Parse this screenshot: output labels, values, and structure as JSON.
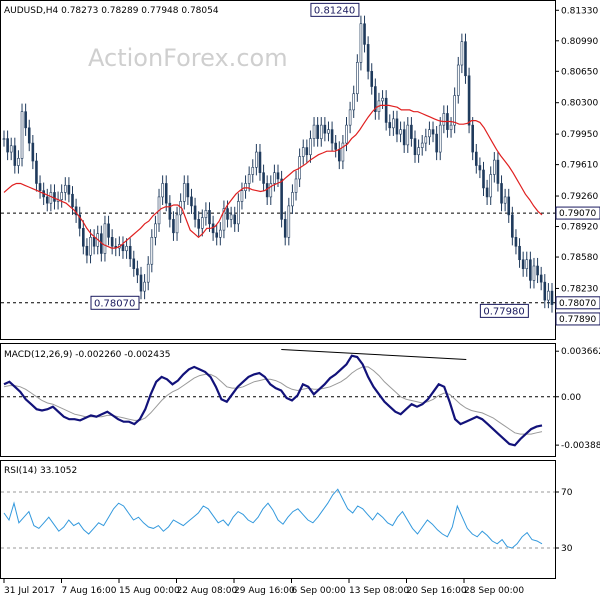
{
  "chart_data": [
    {
      "type": "candlestick",
      "title": "AUDUSD,H4  0.78273 0.78289 0.77948 0.78054",
      "watermark": "ActionForex.com",
      "ylim": [
        0.777,
        0.814
      ],
      "yticks": [
        "0.81330",
        "0.80990",
        "0.80650",
        "0.80300",
        "0.79950",
        "0.79610",
        "0.79260",
        "0.78920",
        "0.78580",
        "0.78230"
      ],
      "price_badges": [
        {
          "value": 0.7907,
          "label": "0.79070"
        },
        {
          "value": 0.7807,
          "label": "0.78070"
        },
        {
          "value": 0.7789,
          "label": "0.77890"
        }
      ],
      "horizontal_lines": [
        0.7907,
        0.7807
      ],
      "annotations": [
        {
          "label": "0.81240",
          "value": 0.8124,
          "x_index": 99
        },
        {
          "label": "0.78070",
          "value": 0.7807,
          "x_index": 38
        },
        {
          "label": "0.77980",
          "value": 0.7798,
          "x_index": 146
        }
      ],
      "price_series": [
        0.799,
        0.7975,
        0.7982,
        0.796,
        0.7968,
        0.802,
        0.8002,
        0.7985,
        0.7965,
        0.794,
        0.7932,
        0.7925,
        0.7918,
        0.793,
        0.792,
        0.7922,
        0.793,
        0.7938,
        0.7928,
        0.7914,
        0.7905,
        0.789,
        0.787,
        0.786,
        0.788,
        0.787,
        0.7884,
        0.7862,
        0.7895,
        0.788,
        0.787,
        0.7868,
        0.7872,
        0.7865,
        0.787,
        0.7856,
        0.7845,
        0.7838,
        0.782,
        0.783,
        0.785,
        0.788,
        0.7895,
        0.7925,
        0.794,
        0.7918,
        0.79,
        0.7885,
        0.7905,
        0.792,
        0.794,
        0.7925,
        0.7915,
        0.79,
        0.789,
        0.7902,
        0.791,
        0.7895,
        0.7885,
        0.788,
        0.7888,
        0.7912,
        0.79,
        0.7905,
        0.7895,
        0.792,
        0.7932,
        0.794,
        0.795,
        0.7958,
        0.7975,
        0.7952,
        0.794,
        0.7925,
        0.794,
        0.7952,
        0.7945,
        0.79,
        0.788,
        0.7915,
        0.793,
        0.7945,
        0.797,
        0.798,
        0.7972,
        0.799,
        0.8005,
        0.799,
        0.8005,
        0.7996,
        0.8,
        0.7985,
        0.7978,
        0.7965,
        0.7985,
        0.8005,
        0.8022,
        0.804,
        0.8075,
        0.8118,
        0.8095,
        0.8065,
        0.8048,
        0.802,
        0.8032,
        0.8035,
        0.8008,
        0.8002,
        0.8012,
        0.7995,
        0.8,
        0.7983,
        0.8005,
        0.799,
        0.7972,
        0.798,
        0.7985,
        0.7992,
        0.8,
        0.7995,
        0.7975,
        0.8005,
        0.8018,
        0.8,
        0.8005,
        0.8038,
        0.8072,
        0.8098,
        0.806,
        0.8005,
        0.7975,
        0.796,
        0.7955,
        0.7935,
        0.7925,
        0.795,
        0.7966,
        0.794,
        0.7918,
        0.7925,
        0.7905,
        0.788,
        0.787,
        0.7855,
        0.7845,
        0.7855,
        0.7832,
        0.7848,
        0.7838,
        0.783,
        0.781,
        0.782,
        0.7805
      ],
      "ma_series": [
        0.793,
        0.7934,
        0.7938,
        0.794,
        0.794,
        0.7938,
        0.7936,
        0.7934,
        0.7932,
        0.793,
        0.7928,
        0.7926,
        0.7924,
        0.7922,
        0.792,
        0.7918,
        0.7914,
        0.791,
        0.7904,
        0.7898,
        0.789,
        0.7884,
        0.788,
        0.7876,
        0.7872,
        0.787,
        0.7868,
        0.7868,
        0.787,
        0.7874,
        0.7878,
        0.7882,
        0.7886,
        0.789,
        0.7895,
        0.7898,
        0.7904,
        0.7908,
        0.7912,
        0.7914,
        0.7914,
        0.7916,
        0.7916,
        0.7912,
        0.79,
        0.7888,
        0.7884,
        0.788,
        0.7884,
        0.789,
        0.789,
        0.7892,
        0.7898,
        0.7908,
        0.7916,
        0.7922,
        0.7928,
        0.7932,
        0.7935,
        0.7935,
        0.7933,
        0.7932,
        0.7931,
        0.7932,
        0.7935,
        0.7938,
        0.794,
        0.7942,
        0.7946,
        0.795,
        0.7954,
        0.7956,
        0.7959,
        0.7962,
        0.7966,
        0.7969,
        0.7972,
        0.7974,
        0.7976,
        0.7976,
        0.7976,
        0.7978,
        0.7981,
        0.7984,
        0.799,
        0.7994,
        0.8,
        0.8007,
        0.8014,
        0.802,
        0.8025,
        0.8027,
        0.8027,
        0.8027,
        0.8026,
        0.8025,
        0.8022,
        0.8022,
        0.8022,
        0.802,
        0.802,
        0.8018,
        0.8016,
        0.8014,
        0.8012,
        0.801,
        0.8009,
        0.8009,
        0.8009,
        0.8008,
        0.8006,
        0.8006,
        0.8007,
        0.801,
        0.801,
        0.8008,
        0.8002,
        0.7994,
        0.7986,
        0.7978,
        0.7971,
        0.7965,
        0.7959,
        0.7952,
        0.7944,
        0.7936,
        0.7928,
        0.7922,
        0.7915,
        0.7909,
        0.7905
      ]
    },
    {
      "type": "line",
      "title": "MACD(12,26,9) -0.002260 -0.002435",
      "ylim": [
        -0.0046,
        0.004
      ],
      "yticks": [
        "0.003662",
        "0.00",
        "-0.003887"
      ],
      "zero_line": 0,
      "macd": [
        0.001,
        0.0012,
        0.0008,
        0.0004,
        -0.0002,
        -0.0006,
        -0.001,
        -0.0011,
        -0.001,
        -0.0008,
        -0.0012,
        -0.0016,
        -0.0018,
        -0.0018,
        -0.0019,
        -0.0017,
        -0.0015,
        -0.0016,
        -0.0014,
        -0.0012,
        -0.0015,
        -0.0018,
        -0.002,
        -0.002,
        -0.0022,
        -0.0018,
        -0.001,
        0.0002,
        0.0012,
        0.0016,
        0.0014,
        0.001,
        0.0013,
        0.0018,
        0.0022,
        0.0024,
        0.0022,
        0.002,
        0.0016,
        0.0008,
        -0.0002,
        -0.0004,
        0.0002,
        0.0008,
        0.0012,
        0.0016,
        0.0018,
        0.0019,
        0.0016,
        0.001,
        0.0007,
        0.0005,
        -0.0001,
        -0.0003,
        0.0001,
        0.001,
        0.0008,
        0.0002,
        0.0006,
        0.001,
        0.0015,
        0.0018,
        0.0022,
        0.0026,
        0.0033,
        0.0032,
        0.0026,
        0.0016,
        0.0008,
        0.0002,
        -0.0004,
        -0.0008,
        -0.0012,
        -0.0014,
        -0.001,
        -0.0006,
        -0.0008,
        -0.0006,
        -0.0002,
        0.0004,
        0.001,
        0.0008,
        -0.0004,
        -0.0018,
        -0.0022,
        -0.002,
        -0.0018,
        -0.0016,
        -0.0018,
        -0.0022,
        -0.0026,
        -0.003,
        -0.0034,
        -0.0038,
        -0.0039,
        -0.0034,
        -0.003,
        -0.0026,
        -0.0024,
        -0.0023
      ],
      "signal": [
        0.0008,
        0.0009,
        0.0009,
        0.0008,
        0.0006,
        0.0003,
        0.0,
        -0.0003,
        -0.0005,
        -0.0006,
        -0.0008,
        -0.001,
        -0.0012,
        -0.0014,
        -0.0015,
        -0.0016,
        -0.0016,
        -0.0016,
        -0.0016,
        -0.0015,
        -0.0015,
        -0.0016,
        -0.0017,
        -0.0018,
        -0.0019,
        -0.0019,
        -0.0017,
        -0.0013,
        -0.0008,
        -0.0003,
        0.0001,
        0.0004,
        0.0006,
        0.0009,
        0.0012,
        0.0015,
        0.0017,
        0.0018,
        0.0018,
        0.0016,
        0.0012,
        0.0008,
        0.0007,
        0.0007,
        0.0008,
        0.001,
        0.0012,
        0.0013,
        0.0014,
        0.0014,
        0.0013,
        0.0011,
        0.0008,
        0.0006,
        0.0005,
        0.0006,
        0.0007,
        0.0006,
        0.0006,
        0.0007,
        0.0008,
        0.001,
        0.0012,
        0.0015,
        0.0019,
        0.0022,
        0.0024,
        0.0024,
        0.0021,
        0.0017,
        0.0012,
        0.0008,
        0.0004,
        0.0,
        -0.0002,
        -0.0003,
        -0.0004,
        -0.0005,
        -0.0004,
        -0.0002,
        0.0001,
        0.0003,
        0.0002,
        -0.0002,
        -0.0006,
        -0.0009,
        -0.0011,
        -0.0012,
        -0.0013,
        -0.0015,
        -0.0017,
        -0.002,
        -0.0023,
        -0.0026,
        -0.0029,
        -0.003,
        -0.003,
        -0.003,
        -0.0029,
        -0.0028
      ],
      "divergence_line": {
        "x": [
          0.11,
          0.57
        ],
        "y": [
          0.0038,
          0.003
        ]
      }
    },
    {
      "type": "line",
      "title": "RSI(14) 33.1052",
      "ylim": [
        10,
        90
      ],
      "yticks": [
        "70",
        "30"
      ],
      "levels": [
        70,
        30
      ],
      "rsi": [
        55,
        50,
        62,
        48,
        52,
        56,
        46,
        44,
        48,
        52,
        47,
        42,
        45,
        50,
        46,
        48,
        43,
        40,
        44,
        48,
        46,
        52,
        58,
        62,
        60,
        55,
        50,
        52,
        48,
        45,
        44,
        46,
        42,
        45,
        50,
        48,
        46,
        49,
        52,
        55,
        60,
        58,
        53,
        48,
        50,
        46,
        52,
        56,
        54,
        50,
        48,
        52,
        58,
        62,
        57,
        50,
        47,
        52,
        56,
        58,
        54,
        50,
        48,
        52,
        57,
        62,
        68,
        72,
        65,
        58,
        55,
        60,
        58,
        54,
        50,
        55,
        52,
        48,
        46,
        52,
        56,
        50,
        44,
        40,
        45,
        50,
        47,
        43,
        40,
        38,
        45,
        60,
        52,
        44,
        40,
        38,
        42,
        39,
        35,
        33,
        36,
        31,
        30,
        33,
        38,
        41,
        36,
        35,
        33
      ]
    },
    {
      "type": "axis",
      "xticks": [
        "31 Jul 2017",
        "7 Aug 16:00",
        "15 Aug 00:00",
        "22 Aug 08:00",
        "29 Aug 16:00",
        "6 Sep 00:00",
        "13 Sep 08:00",
        "20 Sep 16:00",
        "28 Sep 00:00"
      ]
    }
  ],
  "colors": {
    "candle": "#1f3a5c",
    "ma": "#e02020",
    "macd": "#12127a",
    "signal": "#9a9a9a",
    "rsi": "#3399dd",
    "grid": "#000000",
    "badge_bg": "#ffffff",
    "badge_border": "#1a1a5e"
  }
}
